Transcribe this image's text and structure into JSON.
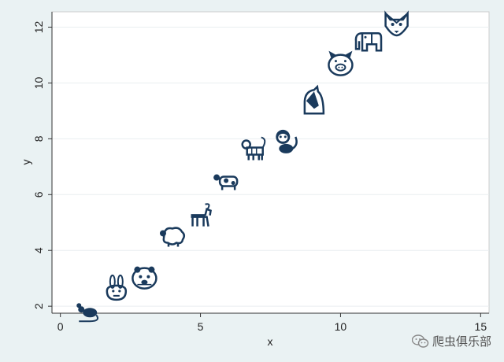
{
  "chart_data": {
    "type": "scatter",
    "title": "",
    "xlabel": "x",
    "ylabel": "y",
    "xlim": [
      -0.3,
      15.3
    ],
    "ylim": [
      1.75,
      12.55
    ],
    "xticks": [
      0,
      5,
      10,
      15
    ],
    "yticks": [
      2,
      4,
      6,
      8,
      10,
      12
    ],
    "grid": true,
    "legend": "none",
    "marker_color": "#1a3a5c",
    "points": [
      {
        "x": 1,
        "y": 1.8,
        "icon": "rat-icon"
      },
      {
        "x": 2,
        "y": 2.6,
        "icon": "rabbit-icon"
      },
      {
        "x": 3,
        "y": 3.0,
        "icon": "hamster-icon"
      },
      {
        "x": 4,
        "y": 4.5,
        "icon": "sheep-icon"
      },
      {
        "x": 5,
        "y": 5.2,
        "icon": "goat-icon"
      },
      {
        "x": 6,
        "y": 6.5,
        "icon": "cow-icon"
      },
      {
        "x": 7,
        "y": 7.6,
        "icon": "tiger-icon"
      },
      {
        "x": 8,
        "y": 7.9,
        "icon": "monkey-icon"
      },
      {
        "x": 9,
        "y": 9.3,
        "icon": "horse-icon"
      },
      {
        "x": 10,
        "y": 10.7,
        "icon": "pig-icon"
      },
      {
        "x": 11,
        "y": 11.5,
        "icon": "elephant-icon"
      },
      {
        "x": 12,
        "y": 12.1,
        "icon": "wolf-icon"
      }
    ]
  },
  "watermark": {
    "text": "爬虫俱乐部",
    "icon": "wechat-icon"
  }
}
